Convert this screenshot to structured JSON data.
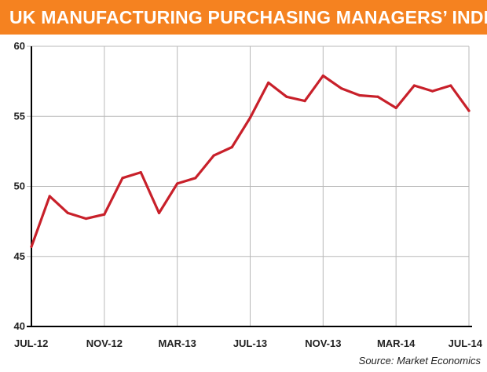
{
  "chart_data": {
    "type": "line",
    "title": "UK MANUFACTURING PURCHASING MANAGERS’ INDEX",
    "source": "Source: Market Economics",
    "xlabel": "",
    "ylabel": "",
    "ylim": [
      40,
      60
    ],
    "yticks": [
      40,
      45,
      50,
      55,
      60
    ],
    "grid": true,
    "x_tick_labels": [
      "JUL-12",
      "NOV-12",
      "MAR-13",
      "JUL-13",
      "NOV-13",
      "MAR-14",
      "JUL-14"
    ],
    "x": [
      "2012-07",
      "2012-08",
      "2012-09",
      "2012-10",
      "2012-11",
      "2012-12",
      "2013-01",
      "2013-02",
      "2013-03",
      "2013-04",
      "2013-05",
      "2013-06",
      "2013-07",
      "2013-08",
      "2013-09",
      "2013-10",
      "2013-11",
      "2013-12",
      "2014-01",
      "2014-02",
      "2014-03",
      "2014-04",
      "2014-05",
      "2014-06",
      "2014-07"
    ],
    "series": [
      {
        "values": [
          45.7,
          49.3,
          48.1,
          47.7,
          48.0,
          50.6,
          51.0,
          48.1,
          50.2,
          50.6,
          52.2,
          52.8,
          54.9,
          57.4,
          56.4,
          56.1,
          57.9,
          57.0,
          56.5,
          56.4,
          55.6,
          57.2,
          56.8,
          57.2,
          55.4
        ],
        "color": "#c8202a"
      }
    ]
  },
  "colors": {
    "title_bg": "#f58220",
    "line": "#c8202a",
    "grid": "#b8b8b8"
  }
}
